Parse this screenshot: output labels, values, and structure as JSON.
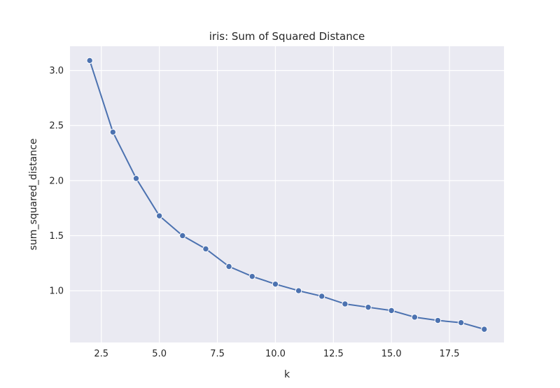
{
  "chart_data": {
    "type": "line",
    "title": "iris: Sum of Squared Distance",
    "xlabel": "k",
    "ylabel": "sum_squared_distance",
    "xlim": [
      1.15,
      19.85
    ],
    "ylim": [
      0.53,
      3.22
    ],
    "xticks": [
      2.5,
      5.0,
      7.5,
      10.0,
      12.5,
      15.0,
      17.5
    ],
    "xtick_labels": [
      "2.5",
      "5.0",
      "7.5",
      "10.0",
      "12.5",
      "15.0",
      "17.5"
    ],
    "yticks": [
      1.0,
      1.5,
      2.0,
      2.5,
      3.0
    ],
    "ytick_labels": [
      "1.0",
      "1.5",
      "2.0",
      "2.5",
      "3.0"
    ],
    "grid": true,
    "x": [
      2,
      3,
      4,
      5,
      6,
      7,
      8,
      9,
      10,
      11,
      12,
      13,
      14,
      15,
      16,
      17,
      18,
      19
    ],
    "series": [
      {
        "values": [
          3.09,
          2.44,
          2.02,
          1.68,
          1.5,
          1.38,
          1.22,
          1.13,
          1.06,
          1.0,
          0.95,
          0.88,
          0.85,
          0.82,
          0.76,
          0.73,
          0.71,
          0.65
        ],
        "color": "#4c72b0",
        "marker": "circle"
      }
    ],
    "background_color": "#eaeaf2",
    "grid_color": "#ffffff"
  }
}
